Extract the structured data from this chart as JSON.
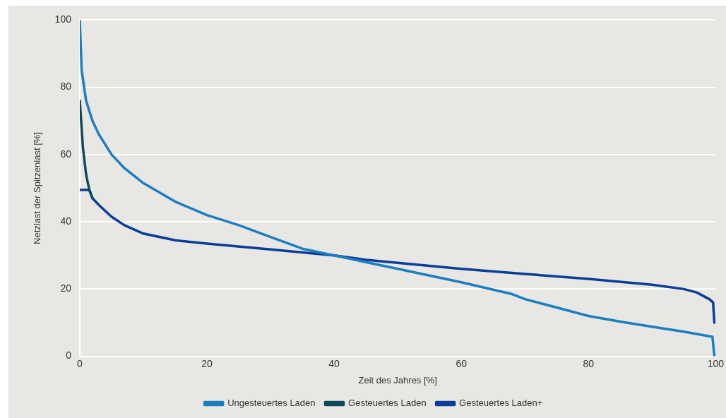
{
  "chart_data": {
    "type": "line",
    "xlabel": "Zeit des Jahres [%]",
    "ylabel": "Netzlast der Spitzenlast [%]",
    "xlim": [
      0,
      100
    ],
    "xticks": [
      0,
      20,
      40,
      60,
      80,
      100
    ],
    "ylim": [
      0,
      100
    ],
    "yticks": [
      0,
      20,
      40,
      60,
      80,
      100
    ],
    "grid": "y",
    "legend": "bottom",
    "marker": "none",
    "line_style": "solid",
    "series": [
      {
        "name": "Ungesteuertes Laden",
        "color": "#1a7fc1",
        "x": [
          0,
          0.3,
          1,
          2,
          3,
          5,
          7,
          10,
          15,
          20,
          25,
          30,
          35,
          40,
          45,
          50,
          55,
          60,
          65,
          68,
          70,
          75,
          80,
          85,
          90,
          95,
          99.5,
          99.8
        ],
        "values": [
          100,
          85,
          76,
          70,
          66,
          60,
          56,
          51.5,
          46,
          42,
          39,
          35.5,
          32,
          30,
          28,
          26,
          24,
          22,
          19.8,
          18.5,
          17,
          14.5,
          12,
          10.3,
          8.8,
          7.3,
          5.8,
          0
        ]
      },
      {
        "name": "Gesteuertes Laden",
        "color": "#0d4a5c",
        "x": [
          0,
          0.5,
          1,
          1.5,
          2
        ],
        "values": [
          76,
          62,
          54,
          49.5,
          47
        ]
      },
      {
        "name": "Gesteuertes Laden+",
        "color": "#0a3d99",
        "x": [
          0,
          1.5,
          2,
          3,
          5,
          7,
          10,
          15,
          20,
          30,
          40,
          45,
          50,
          60,
          70,
          80,
          90,
          95,
          97,
          99,
          99.6,
          99.8
        ],
        "values": [
          49.5,
          49.5,
          47,
          45,
          41.5,
          39,
          36.5,
          34.5,
          33.5,
          31.8,
          30,
          28.7,
          27.8,
          26,
          24.5,
          23,
          21.3,
          20,
          19,
          17,
          16,
          10
        ]
      }
    ]
  }
}
